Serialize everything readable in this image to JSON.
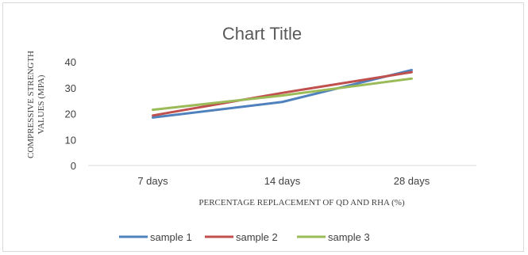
{
  "chart_data": {
    "type": "line",
    "title": "Chart Title",
    "xlabel": "PERCENTAGE REPLACEMENT  OF QD AND RHA (%)",
    "ylabel_lines": [
      "COMPRESSIVE STRENGTH",
      "VALUES (MPA)"
    ],
    "categories": [
      "7 days",
      "14 days",
      "28 days"
    ],
    "ylim": [
      0,
      40
    ],
    "yticks": [
      0,
      10,
      20,
      30,
      40
    ],
    "grid": false,
    "legend_position": "bottom",
    "series": [
      {
        "name": "sample 1",
        "color": "#4f81bd",
        "values": [
          18.5,
          24.5,
          36.8
        ]
      },
      {
        "name": "sample 2",
        "color": "#c0504d",
        "values": [
          19.3,
          28.0,
          36.0
        ]
      },
      {
        "name": "sample 3",
        "color": "#9bbb59",
        "values": [
          21.5,
          27.0,
          33.5
        ]
      }
    ]
  }
}
